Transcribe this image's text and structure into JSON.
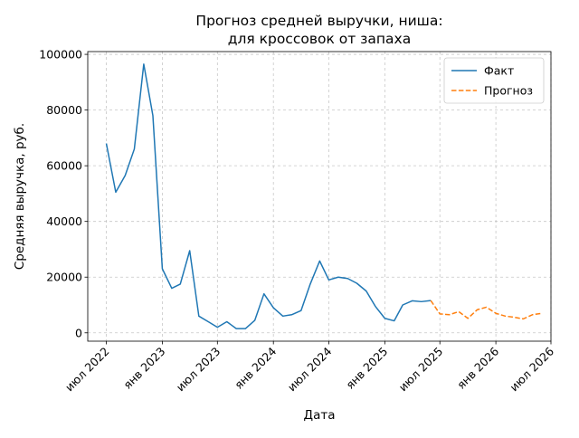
{
  "chart_data": {
    "type": "line",
    "title": [
      "Прогноз средней выручки, ниша:",
      "для кроссовок от запаха"
    ],
    "xlabel": "Дата",
    "ylabel": "Средняя выручка, руб.",
    "x_range": [
      "2022-05-01",
      "2026-07-01"
    ],
    "ylim": [
      -3000,
      101000
    ],
    "y_ticks": [
      0,
      20000,
      40000,
      60000,
      80000,
      100000
    ],
    "x_ticks": [
      {
        "date": "2022-07-01",
        "label": "июл 2022"
      },
      {
        "date": "2023-01-01",
        "label": "янв 2023"
      },
      {
        "date": "2023-07-01",
        "label": "июл 2023"
      },
      {
        "date": "2024-01-01",
        "label": "янв 2024"
      },
      {
        "date": "2024-07-01",
        "label": "июл 2024"
      },
      {
        "date": "2025-01-01",
        "label": "янв 2025"
      },
      {
        "date": "2025-07-01",
        "label": "июл 2025"
      },
      {
        "date": "2026-01-01",
        "label": "янв 2026"
      },
      {
        "date": "2026-07-01",
        "label": "июл 2026"
      }
    ],
    "grid": true,
    "legend_position": "top-right",
    "series": [
      {
        "name": "Факт",
        "style": "solid",
        "color": "#1f77b4",
        "points": [
          [
            "2022-07-01",
            68000
          ],
          [
            "2022-08-01",
            50500
          ],
          [
            "2022-09-01",
            56500
          ],
          [
            "2022-10-01",
            66000
          ],
          [
            "2022-11-01",
            96500
          ],
          [
            "2022-12-01",
            78000
          ],
          [
            "2023-01-01",
            23000
          ],
          [
            "2023-02-01",
            16000
          ],
          [
            "2023-03-01",
            17500
          ],
          [
            "2023-04-01",
            29500
          ],
          [
            "2023-05-01",
            6000
          ],
          [
            "2023-06-01",
            4000
          ],
          [
            "2023-07-01",
            2000
          ],
          [
            "2023-08-01",
            4000
          ],
          [
            "2023-09-01",
            1500
          ],
          [
            "2023-10-01",
            1500
          ],
          [
            "2023-11-01",
            4500
          ],
          [
            "2023-12-01",
            14000
          ],
          [
            "2024-01-01",
            9000
          ],
          [
            "2024-02-01",
            6000
          ],
          [
            "2024-03-01",
            6500
          ],
          [
            "2024-04-01",
            8000
          ],
          [
            "2024-05-01",
            17500
          ],
          [
            "2024-06-01",
            25800
          ],
          [
            "2024-07-01",
            19000
          ],
          [
            "2024-08-01",
            20000
          ],
          [
            "2024-09-01",
            19500
          ],
          [
            "2024-10-01",
            17800
          ],
          [
            "2024-11-01",
            15000
          ],
          [
            "2024-12-01",
            9500
          ],
          [
            "2025-01-01",
            5200
          ],
          [
            "2025-02-01",
            4300
          ],
          [
            "2025-03-01",
            10000
          ],
          [
            "2025-04-01",
            11500
          ],
          [
            "2025-05-01",
            11200
          ],
          [
            "2025-06-01",
            11600
          ]
        ]
      },
      {
        "name": "Прогноз",
        "style": "dashed",
        "color": "#ff7f0e",
        "points": [
          [
            "2025-06-01",
            11600
          ],
          [
            "2025-07-01",
            6800
          ],
          [
            "2025-08-01",
            6500
          ],
          [
            "2025-09-01",
            7600
          ],
          [
            "2025-10-01",
            5200
          ],
          [
            "2025-11-01",
            8300
          ],
          [
            "2025-12-01",
            9200
          ],
          [
            "2026-01-01",
            7000
          ],
          [
            "2026-02-01",
            6000
          ],
          [
            "2026-03-01",
            5600
          ],
          [
            "2026-04-01",
            5000
          ],
          [
            "2026-05-01",
            6500
          ],
          [
            "2026-06-01",
            7000
          ]
        ]
      }
    ]
  }
}
